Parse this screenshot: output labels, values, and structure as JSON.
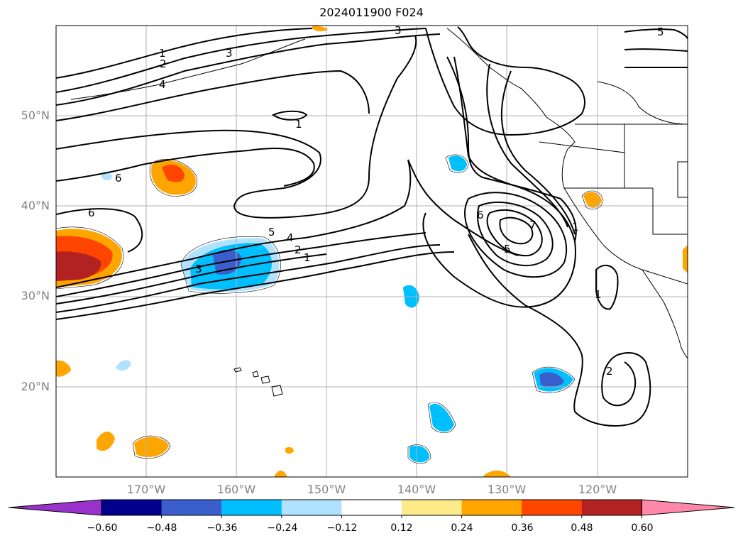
{
  "title": "2024011900 F024",
  "map": {
    "lat_labels": [
      "50°N",
      "40°N",
      "30°N",
      "20°N"
    ],
    "lon_labels": [
      "170°W",
      "160°W",
      "150°W",
      "140°W",
      "130°W",
      "120°W"
    ],
    "contour_labels": [
      "1",
      "2",
      "3",
      "3",
      "4",
      "5",
      "6",
      "6",
      "1",
      "5",
      "4",
      "2",
      "1",
      "3",
      "6",
      "7",
      "5",
      "1",
      "2",
      "1",
      "5"
    ]
  },
  "colorbar": {
    "ticks": [
      "−0.60",
      "−0.48",
      "−0.36",
      "−0.24",
      "−0.12",
      "0.12",
      "0.24",
      "0.36",
      "0.48",
      "0.60"
    ],
    "colors": [
      "#9932cc",
      "#00008b",
      "#3a5fcd",
      "#00bfff",
      "#b0e2ff",
      "#ffffff",
      "#fdeb8a",
      "#ffa500",
      "#ff4500",
      "#b22222",
      "#ff88aa"
    ]
  }
}
